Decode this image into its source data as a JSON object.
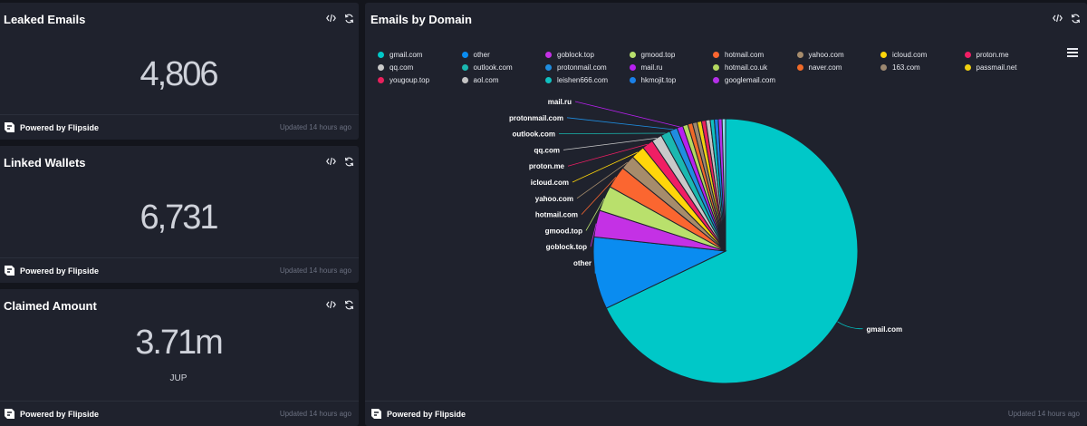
{
  "cards": {
    "leaked": {
      "title": "Leaked Emails",
      "value": "4,806",
      "brand": "Powered by Flipside",
      "updated": "Updated 14 hours ago"
    },
    "wallets": {
      "title": "Linked Wallets",
      "value": "6,731",
      "brand": "Powered by Flipside",
      "updated": "Updated 14 hours ago"
    },
    "claimed": {
      "title": "Claimed Amount",
      "value": "3.71m",
      "unit": "JUP",
      "brand": "Powered by Flipside",
      "updated": "Updated 14 hours ago"
    },
    "domains": {
      "title": "Emails by Domain",
      "brand": "Powered by Flipside",
      "updated": "Updated 14 hours ago"
    }
  },
  "icons": {
    "embed": "code-icon",
    "refresh": "refresh-icon",
    "menu": "hamburger-menu-icon",
    "brand": "flipside-logo"
  },
  "chart_data": {
    "type": "pie",
    "title": "Emails by Domain",
    "legend_position": "top",
    "slices": [
      {
        "label": "gmail.com",
        "value": 3230,
        "color": "#00c8c8",
        "show_label": true
      },
      {
        "label": "other",
        "value": 420,
        "color": "#0a8cf0",
        "show_label": true
      },
      {
        "label": "goblock.top",
        "value": 155,
        "color": "#c431e5",
        "show_label": true
      },
      {
        "label": "gmood.top",
        "value": 148,
        "color": "#b9e06c",
        "show_label": true
      },
      {
        "label": "hotmail.com",
        "value": 130,
        "color": "#fb6630",
        "show_label": true
      },
      {
        "label": "yahoo.com",
        "value": 85,
        "color": "#a68c6c",
        "show_label": true
      },
      {
        "label": "icloud.com",
        "value": 80,
        "color": "#ffd60a",
        "show_label": true
      },
      {
        "label": "proton.me",
        "value": 65,
        "color": "#f01e64",
        "show_label": true
      },
      {
        "label": "qq.com",
        "value": 60,
        "color": "#c9c9c9",
        "show_label": true
      },
      {
        "label": "outlook.com",
        "value": 55,
        "color": "#1ab8b0",
        "show_label": true
      },
      {
        "label": "protonmail.com",
        "value": 45,
        "color": "#1f8de0",
        "show_label": true
      },
      {
        "label": "mail.ru",
        "value": 35,
        "color": "#b820f0",
        "show_label": true
      },
      {
        "label": "hotmail.co.uk",
        "value": 30,
        "color": "#b4d860",
        "show_label": false
      },
      {
        "label": "naver.com",
        "value": 28,
        "color": "#f06a28",
        "show_label": false
      },
      {
        "label": "163.com",
        "value": 27,
        "color": "#9c8870",
        "show_label": false
      },
      {
        "label": "passmail.net",
        "value": 26,
        "color": "#f0d010",
        "show_label": false
      },
      {
        "label": "yougoup.top",
        "value": 25,
        "color": "#e8205c",
        "show_label": false
      },
      {
        "label": "aol.com",
        "value": 25,
        "color": "#c4c4c4",
        "show_label": false
      },
      {
        "label": "leishen666.com",
        "value": 24,
        "color": "#10c0c0",
        "show_label": false
      },
      {
        "label": "hkmojit.top",
        "value": 23,
        "color": "#1a80e8",
        "show_label": false
      },
      {
        "label": "googlemail.com",
        "value": 22,
        "color": "#b430e8",
        "show_label": false
      },
      {
        "label": "",
        "value": 20,
        "color": "#8de0ec",
        "show_label": false
      }
    ]
  }
}
